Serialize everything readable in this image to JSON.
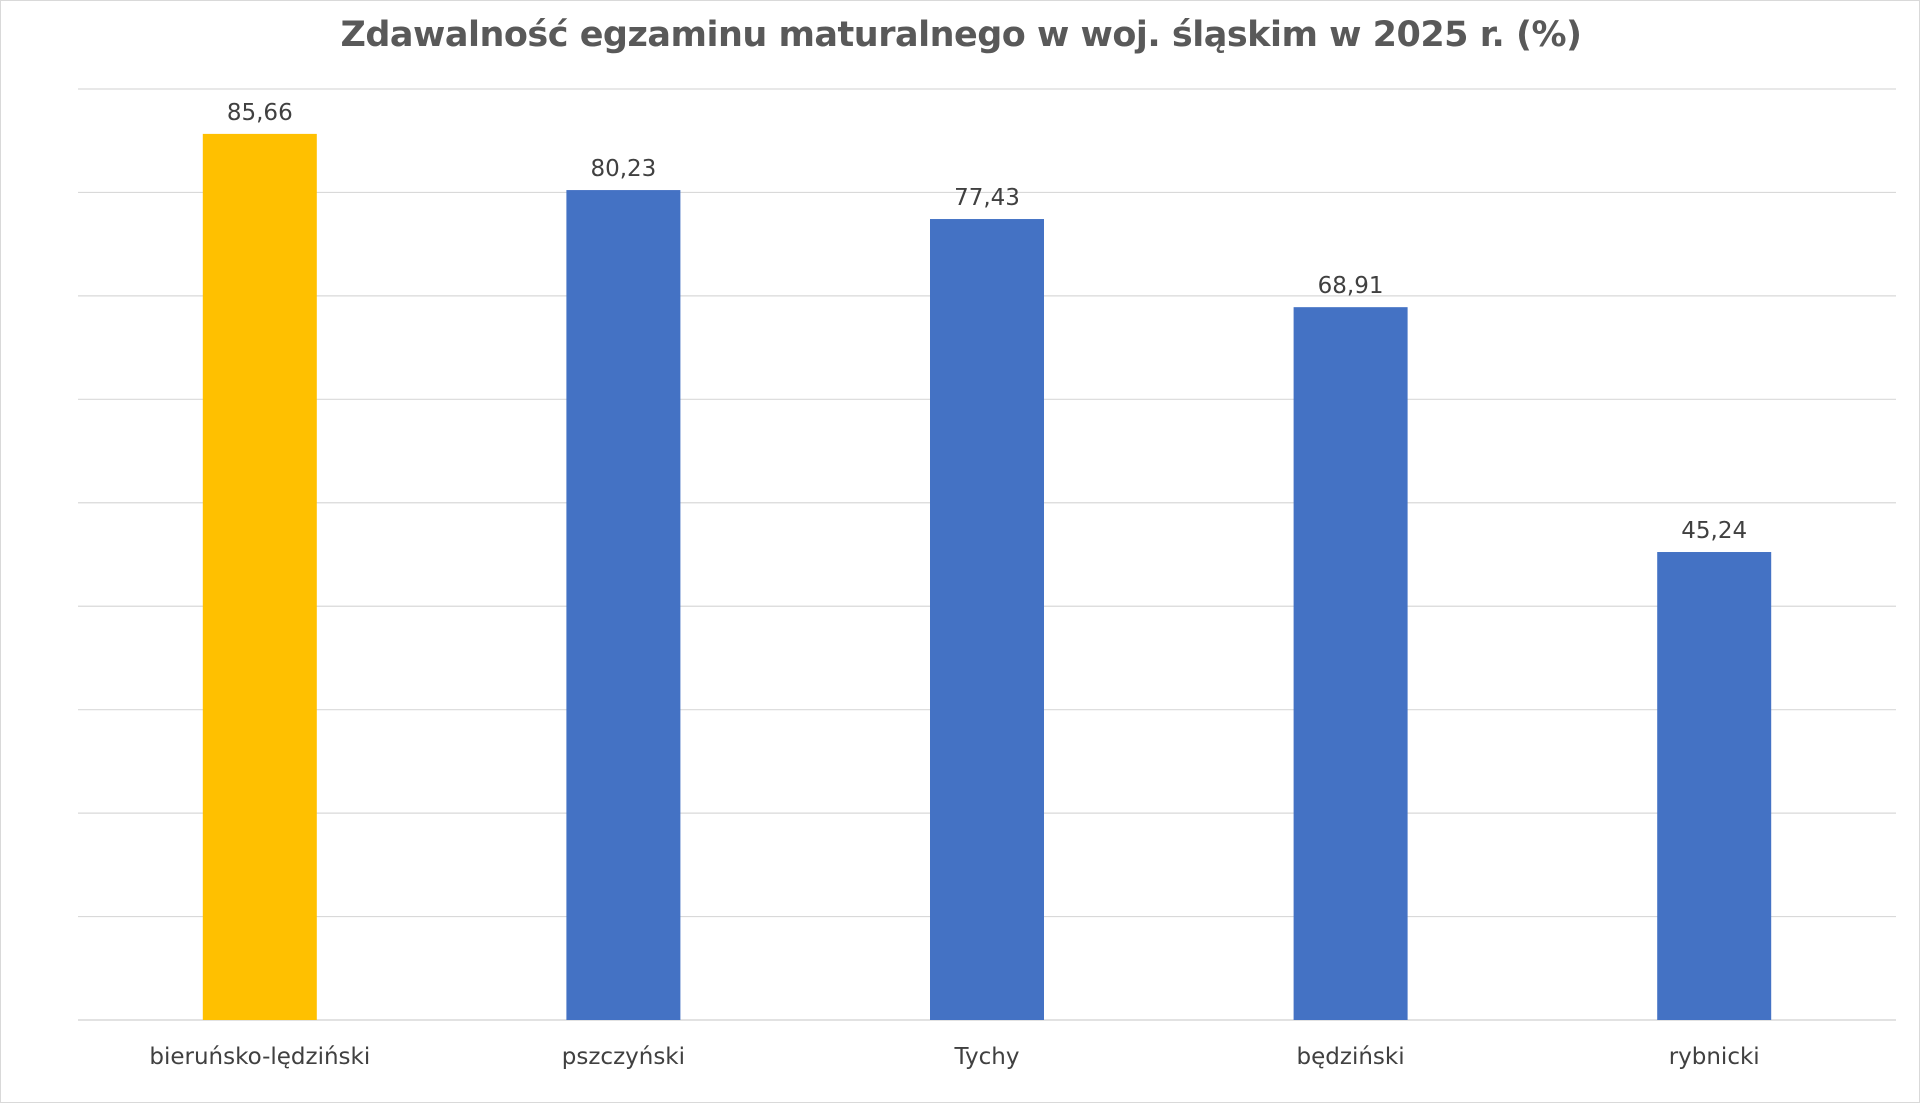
{
  "chart_data": {
    "type": "bar",
    "title": "Zdawalność egzaminu maturalnego w woj. śląskim w 2025 r. (%)",
    "categories": [
      "bieruńsko-lędziński",
      "pszczyński",
      "Tychy",
      "będziński",
      "rybnicki"
    ],
    "values": [
      85.66,
      80.23,
      77.43,
      68.91,
      45.24
    ],
    "value_labels": [
      "85,66",
      "80,23",
      "77,43",
      "68,91",
      "45,24"
    ],
    "bar_colors": [
      "#FFC000",
      "#4472C4",
      "#4472C4",
      "#4472C4",
      "#4472C4"
    ],
    "ylim": [
      0,
      90
    ],
    "y_gridline_step": 10,
    "y_tick_labels_shown": false,
    "grid": true,
    "legend": "none",
    "xlabel": "",
    "ylabel": ""
  }
}
